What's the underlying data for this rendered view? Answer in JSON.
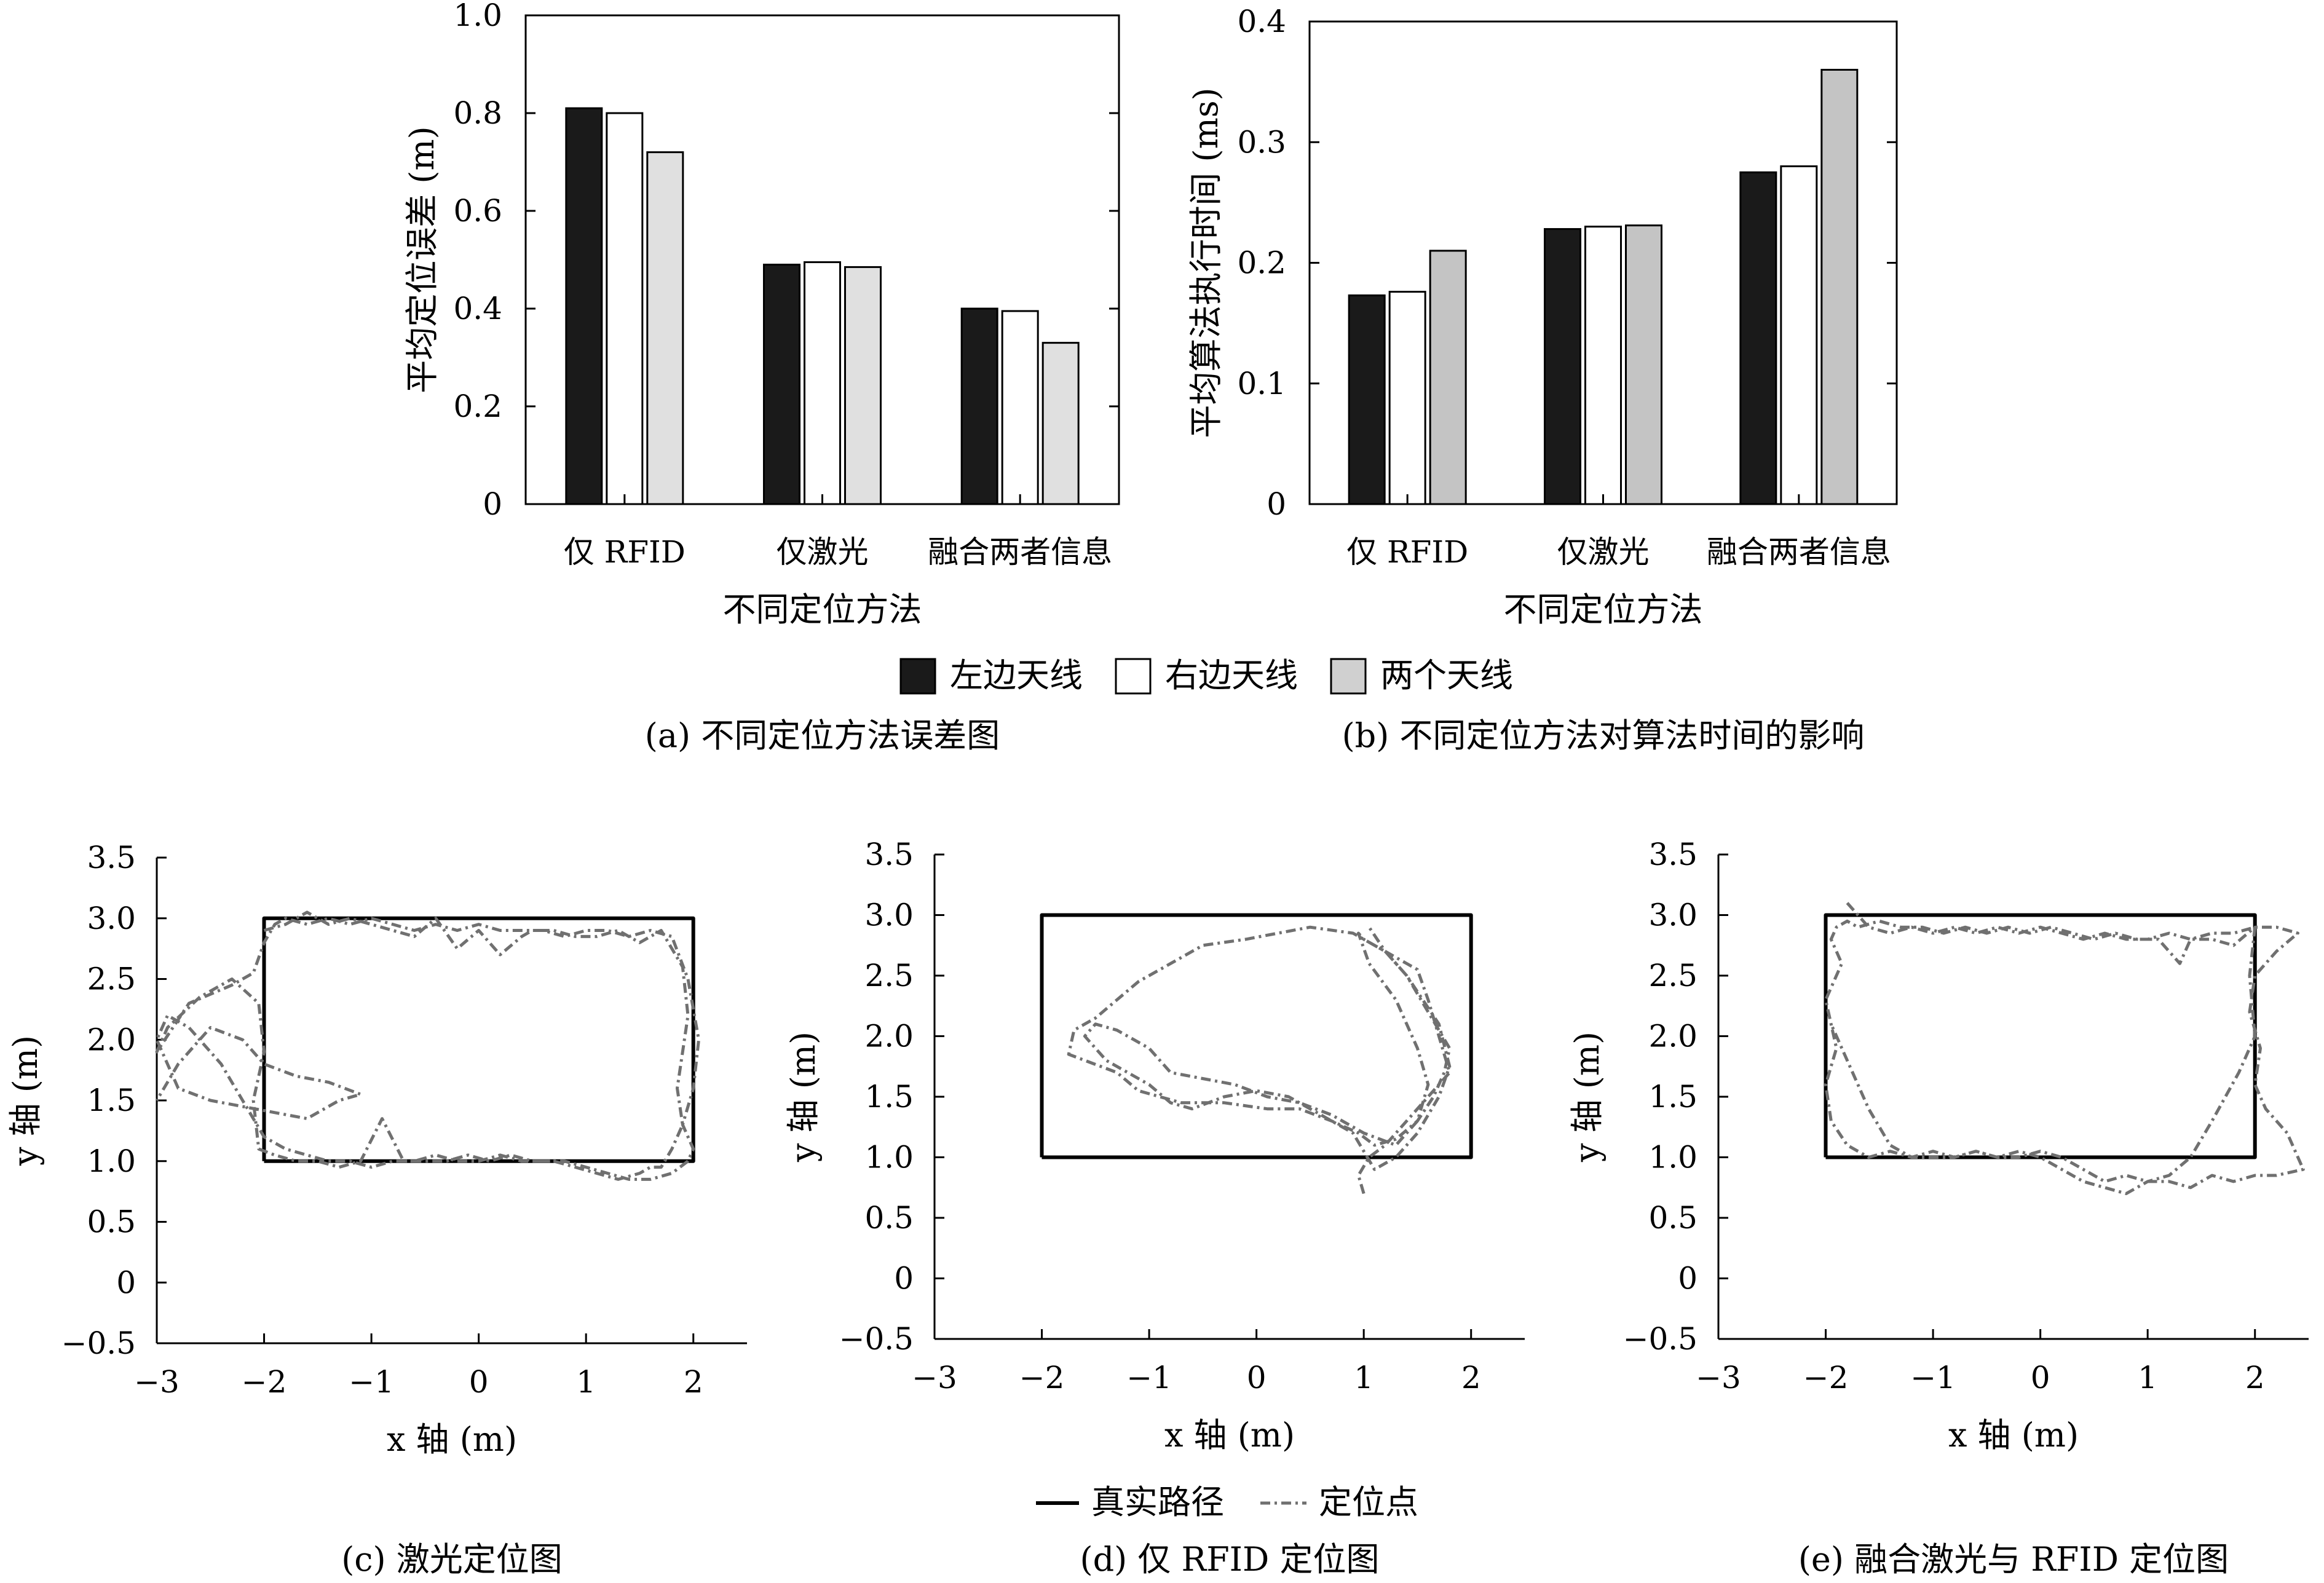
{
  "chart_data": [
    {
      "type": "bar",
      "caption": "(a) 不同定位方法误差图",
      "categories": [
        "仅 RFID",
        "仅激光",
        "融合两者信息"
      ],
      "xlabel": "不同定位方法",
      "ylabel": "平均定位误差 (m)",
      "ylim": [
        0,
        1.0
      ],
      "yticks": [
        "0",
        "0.2",
        "0.4",
        "0.6",
        "0.8",
        "1.0"
      ],
      "grid": false,
      "series": [
        {
          "name": "左边天线",
          "color": "#1a1a1a",
          "values": [
            0.81,
            0.49,
            0.4
          ]
        },
        {
          "name": "右边天线",
          "color": "#ffffff",
          "values": [
            0.8,
            0.495,
            0.395
          ]
        },
        {
          "name": "两个天线",
          "color": "#e0e0e0",
          "values": [
            0.72,
            0.485,
            0.33
          ]
        }
      ]
    },
    {
      "type": "bar",
      "caption": "(b) 不同定位方法对算法时间的影响",
      "categories": [
        "仅 RFID",
        "仅激光",
        "融合两者信息"
      ],
      "xlabel": "不同定位方法",
      "ylabel": "平均算法执行时间 (ms)",
      "ylim": [
        0,
        0.4
      ],
      "yticks": [
        "0",
        "0.1",
        "0.2",
        "0.3",
        "0.4"
      ],
      "grid": false,
      "series": [
        {
          "name": "左边天线",
          "color": "#1a1a1a",
          "values": [
            0.173,
            0.228,
            0.275
          ]
        },
        {
          "name": "右边天线",
          "color": "#ffffff",
          "values": [
            0.176,
            0.23,
            0.28
          ]
        },
        {
          "name": "两个天线",
          "color": "#c4c4c4",
          "values": [
            0.21,
            0.231,
            0.36
          ]
        }
      ]
    },
    {
      "type": "line",
      "caption": "(c) 激光定位图",
      "xlabel": "x 轴 (m)",
      "ylabel": "y 轴 (m)",
      "xlim": [
        -3,
        2.5
      ],
      "ylim": [
        -0.5,
        3.5
      ],
      "xticks": [
        "−3",
        "−2",
        "−1",
        "0",
        "1",
        "2"
      ],
      "yticks": [
        "−0.5",
        "0",
        "0.5",
        "1.0",
        "1.5",
        "2.0",
        "2.5",
        "3.0",
        "3.5"
      ],
      "series": [
        {
          "name": "真实路径",
          "color": "#000000",
          "style": "solid",
          "x": [
            -2,
            2,
            2,
            -2,
            -2
          ],
          "y": [
            1.0,
            1.0,
            3.0,
            3.0,
            1.0
          ]
        },
        {
          "name": "定位点",
          "color": "#707070",
          "style": "dashdot",
          "x": [
            -2.0,
            -1.8,
            -1.6,
            -1.4,
            -1.2,
            -1.0,
            -0.8,
            -0.6,
            -0.4,
            -0.2,
            0.0,
            0.2,
            0.4,
            0.5,
            0.7,
            0.9,
            1.1,
            1.3,
            1.5,
            1.6,
            1.7,
            1.9,
            1.95,
            1.9,
            1.85,
            1.9,
            1.8,
            1.7,
            1.6,
            1.5,
            1.3,
            1.1,
            0.9,
            0.7,
            0.5,
            0.3,
            0.1,
            -0.1,
            -0.3,
            -0.5,
            -0.7,
            -0.9,
            -1.1,
            -1.3,
            -1.5,
            -1.7,
            -1.9,
            -2.05,
            -2.1,
            -2.0,
            -2.05,
            -2.3,
            -2.6,
            -2.9,
            -3.0,
            -2.7,
            -2.3,
            -2.1,
            -2.0,
            -1.9,
            -1.8,
            -1.6,
            -1.4,
            -1.2,
            -1.0,
            -0.8,
            -0.6,
            -0.4,
            -0.2,
            0.0,
            0.2,
            0.4,
            0.6,
            0.8,
            1.0,
            1.2,
            1.4,
            1.6,
            1.8,
            1.95,
            2.05,
            2.0,
            1.9,
            2.0,
            1.95,
            1.8,
            1.6,
            1.4,
            1.2,
            1.0,
            0.8,
            0.6,
            0.4,
            0.2,
            0.0,
            -0.2,
            -0.4,
            -0.6,
            -0.8,
            -1.0,
            -1.2,
            -1.4,
            -1.6,
            -1.8,
            -2.0,
            -2.2,
            -2.4,
            -2.7,
            -2.9,
            -3.0,
            -2.8,
            -2.5,
            -2.2,
            -1.9,
            -1.6,
            -1.3,
            -1.1,
            -1.4,
            -1.7,
            -2.0,
            -2.2,
            -2.5,
            -2.8,
            -3.0
          ],
          "y": [
            2.9,
            2.95,
            3.05,
            2.95,
            3.0,
            2.95,
            2.9,
            2.85,
            3.0,
            2.75,
            2.9,
            2.7,
            2.85,
            2.9,
            2.9,
            2.85,
            2.85,
            2.9,
            2.8,
            2.85,
            2.9,
            2.6,
            2.2,
            1.9,
            1.6,
            1.3,
            1.1,
            0.95,
            0.95,
            0.9,
            0.85,
            0.9,
            0.95,
            1.0,
            1.0,
            1.05,
            1.0,
            1.05,
            1.0,
            1.0,
            1.0,
            1.35,
            1.0,
            0.95,
            1.0,
            1.0,
            1.05,
            1.1,
            1.5,
            1.9,
            2.3,
            2.5,
            2.35,
            2.1,
            1.9,
            2.3,
            2.45,
            2.55,
            2.8,
            2.95,
            3.0,
            2.95,
            3.0,
            2.95,
            3.0,
            2.95,
            2.9,
            2.95,
            2.9,
            2.95,
            2.9,
            2.9,
            2.9,
            2.85,
            2.9,
            2.9,
            2.85,
            2.9,
            2.85,
            2.5,
            2.0,
            1.6,
            1.3,
            1.1,
            1.0,
            0.9,
            0.85,
            0.85,
            0.9,
            0.95,
            1.0,
            1.0,
            1.0,
            1.05,
            1.0,
            1.0,
            1.05,
            1.0,
            1.0,
            0.95,
            1.0,
            1.0,
            1.05,
            1.1,
            1.2,
            1.5,
            1.8,
            2.1,
            2.2,
            2.0,
            1.6,
            1.5,
            1.45,
            1.4,
            1.35,
            1.5,
            1.55,
            1.65,
            1.7,
            1.8,
            2.0,
            2.1,
            1.8,
            1.5
          ]
        }
      ]
    },
    {
      "type": "line",
      "caption": "(d) 仅 RFID 定位图",
      "xlabel": "x 轴 (m)",
      "ylabel": "y 轴 (m)",
      "xlim": [
        -3,
        2.5
      ],
      "ylim": [
        -0.5,
        3.5
      ],
      "xticks": [
        "−3",
        "−2",
        "−1",
        "0",
        "1",
        "2"
      ],
      "yticks": [
        "−0.5",
        "0",
        "0.5",
        "1.0",
        "1.5",
        "2.0",
        "2.5",
        "3.0",
        "3.5"
      ],
      "series": [
        {
          "name": "真实路径",
          "color": "#000000",
          "style": "solid",
          "x": [
            -2,
            2,
            2,
            -2,
            -2
          ],
          "y": [
            1.0,
            1.0,
            3.0,
            3.0,
            1.0
          ]
        },
        {
          "name": "定位点",
          "color": "#707070",
          "style": "dashdot",
          "x": [
            1.0,
            0.95,
            1.05,
            1.2,
            1.4,
            1.6,
            1.8,
            1.7,
            1.6,
            1.5,
            1.2,
            0.9,
            0.5,
            0.2,
            -0.1,
            -0.5,
            -0.8,
            -1.1,
            -1.3,
            -1.5,
            -1.7,
            -1.75,
            -1.6,
            -1.3,
            -1.1,
            -0.9,
            -0.7,
            -0.3,
            0.1,
            0.4,
            0.7,
            0.95,
            1.1,
            1.3,
            1.5,
            1.65,
            1.75,
            1.8,
            1.6,
            1.4,
            1.2,
            1.0,
            0.95,
            1.05,
            1.3,
            1.5,
            1.6,
            1.5,
            1.3,
            1.0,
            0.7,
            0.4,
            0.1,
            -0.2,
            -0.5,
            -0.8,
            -1.0,
            -1.3,
            -1.5,
            -1.6,
            -1.4,
            -1.2,
            -1.0,
            -0.8,
            -0.6,
            -0.3,
            0.0,
            0.3,
            0.6,
            0.9,
            1.0,
            1.1,
            1.3,
            1.5,
            1.7,
            1.8,
            1.7,
            1.4,
            1.2,
            1.05
          ],
          "y": [
            0.7,
            0.85,
            1.0,
            1.1,
            1.3,
            1.5,
            1.7,
            2.0,
            2.3,
            2.55,
            2.7,
            2.85,
            2.9,
            2.85,
            2.8,
            2.75,
            2.6,
            2.45,
            2.3,
            2.15,
            2.05,
            1.85,
            1.8,
            1.7,
            1.55,
            1.5,
            1.45,
            1.45,
            1.4,
            1.4,
            1.3,
            1.2,
            1.1,
            1.15,
            1.3,
            1.5,
            1.7,
            1.9,
            2.2,
            2.5,
            2.7,
            2.8,
            2.85,
            2.6,
            2.3,
            1.9,
            1.6,
            1.3,
            1.1,
            1.2,
            1.35,
            1.45,
            1.5,
            1.6,
            1.65,
            1.7,
            1.9,
            2.05,
            2.1,
            2.0,
            1.8,
            1.7,
            1.6,
            1.45,
            1.4,
            1.5,
            1.55,
            1.5,
            1.35,
            1.2,
            1.05,
            0.9,
            1.0,
            1.2,
            1.5,
            1.75,
            2.1,
            2.5,
            2.7,
            2.9
          ]
        }
      ]
    },
    {
      "type": "line",
      "caption": "(e) 融合激光与 RFID 定位图",
      "xlabel": "x 轴 (m)",
      "ylabel": "y 轴 (m)",
      "xlim": [
        -3,
        2.5
      ],
      "ylim": [
        -0.5,
        3.5
      ],
      "xticks": [
        "−3",
        "−2",
        "−1",
        "0",
        "1",
        "2"
      ],
      "yticks": [
        "−0.5",
        "0",
        "0.5",
        "1.0",
        "1.5",
        "2.0",
        "2.5",
        "3.0",
        "3.5"
      ],
      "series": [
        {
          "name": "真实路径",
          "color": "#000000",
          "style": "solid",
          "x": [
            -2,
            2,
            2,
            -2,
            -2
          ],
          "y": [
            1.0,
            1.0,
            3.0,
            3.0,
            1.0
          ]
        },
        {
          "name": "定位点",
          "color": "#707070",
          "style": "dashdot",
          "x": [
            -1.8,
            -1.6,
            -1.4,
            -1.2,
            -1.0,
            -0.8,
            -0.6,
            -0.4,
            -0.2,
            0.0,
            0.2,
            0.4,
            0.6,
            0.8,
            1.0,
            1.2,
            1.4,
            1.6,
            1.8,
            2.0,
            2.2,
            2.4,
            2.2,
            2.0,
            1.95,
            2.05,
            2.0,
            2.1,
            2.3,
            2.45,
            2.2,
            2.0,
            1.8,
            1.6,
            1.4,
            1.2,
            1.0,
            0.8,
            0.6,
            0.4,
            0.2,
            0.0,
            -0.2,
            -0.4,
            -0.6,
            -0.8,
            -1.0,
            -1.2,
            -1.4,
            -1.6,
            -1.8,
            -1.95,
            -2.0,
            -1.9,
            -2.0,
            -1.85,
            -1.95,
            -1.9,
            -1.8,
            -1.7,
            -1.5,
            -1.3,
            -1.1,
            -0.9,
            -0.7,
            -0.5,
            -0.3,
            -0.1,
            0.1,
            0.3,
            0.5,
            0.7,
            0.9,
            1.1,
            1.3,
            1.4,
            1.6,
            1.8,
            2.0,
            1.95,
            2.0,
            1.85,
            1.6,
            1.4,
            1.2,
            1.0,
            0.8,
            0.6,
            0.4,
            0.2,
            0.0,
            -0.2,
            -0.4,
            -0.6,
            -0.8,
            -1.0,
            -1.2,
            -1.4,
            -1.6,
            -1.8,
            -1.95
          ],
          "y": [
            3.1,
            2.9,
            2.85,
            2.9,
            2.85,
            2.9,
            2.85,
            2.9,
            2.85,
            2.9,
            2.85,
            2.8,
            2.85,
            2.8,
            2.8,
            2.85,
            2.8,
            2.85,
            2.85,
            2.9,
            2.9,
            2.85,
            2.7,
            2.5,
            2.2,
            1.9,
            1.6,
            1.4,
            1.2,
            0.9,
            0.85,
            0.85,
            0.8,
            0.85,
            0.75,
            0.8,
            0.8,
            0.85,
            0.8,
            0.9,
            1.0,
            1.05,
            1.0,
            1.0,
            1.05,
            1.0,
            1.0,
            1.0,
            1.05,
            1.0,
            1.1,
            1.3,
            1.6,
            1.9,
            2.3,
            2.6,
            2.8,
            2.9,
            2.95,
            2.9,
            2.95,
            2.9,
            2.9,
            2.85,
            2.9,
            2.85,
            2.9,
            2.85,
            2.9,
            2.85,
            2.8,
            2.85,
            2.8,
            2.8,
            2.6,
            2.8,
            2.8,
            2.75,
            2.9,
            2.5,
            2.0,
            1.7,
            1.3,
            1.0,
            0.85,
            0.8,
            0.7,
            0.75,
            0.8,
            0.9,
            1.0,
            1.05,
            1.0,
            1.05,
            1.0,
            1.05,
            1.0,
            1.1,
            1.4,
            1.8,
            2.1
          ]
        }
      ]
    }
  ],
  "legend_bars": [
    {
      "label": "左边天线",
      "color": "#1a1a1a"
    },
    {
      "label": "右边天线",
      "color": "#ffffff"
    },
    {
      "label": "两个天线",
      "color": "#d0d0d0"
    }
  ],
  "legend_paths": [
    {
      "label": "真实路径",
      "style": "solid"
    },
    {
      "label": "定位点",
      "style": "dashdot"
    }
  ]
}
